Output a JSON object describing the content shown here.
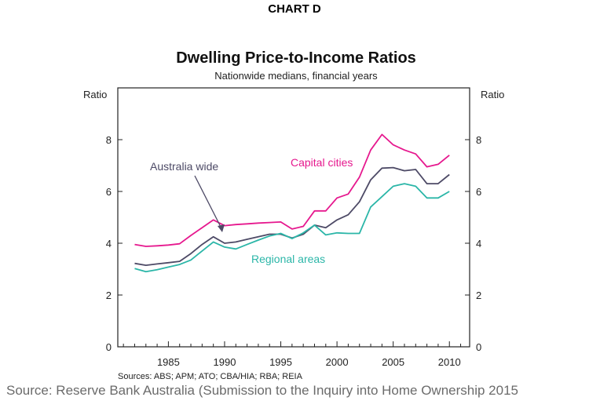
{
  "header": {
    "chart_label": "CHART D"
  },
  "footer": {
    "source": "Source: Reserve Bank Australia (Submission to the Inquiry into Home Ownership 2015"
  },
  "colors": {
    "capital": "#e6188e",
    "australia": "#4d4a66",
    "regional": "#2bb6a8",
    "axis": "#222222"
  },
  "chart_data": {
    "type": "line",
    "title": "Dwelling Price-to-Income Ratios",
    "subtitle": "Nationwide medians, financial years",
    "ylabel_left": "Ratio",
    "ylabel_right": "Ratio",
    "sources": "Sources: ABS; APM; ATO; CBA/HIA; RBA; REIA",
    "xlim": [
      1980.5,
      2011.8
    ],
    "ylim": [
      0,
      10
    ],
    "xticks": [
      1985,
      1990,
      1995,
      2000,
      2005,
      2010
    ],
    "yticks": [
      0,
      2,
      4,
      6,
      8
    ],
    "grid": false,
    "x": [
      1982,
      1983,
      1984,
      1985,
      1986,
      1987,
      1988,
      1989,
      1990,
      1991,
      1992,
      1993,
      1994,
      1995,
      1996,
      1997,
      1998,
      1999,
      2000,
      2001,
      2002,
      2003,
      2004,
      2005,
      2006,
      2007,
      2008,
      2009,
      2010
    ],
    "series": [
      {
        "name": "Capital cities",
        "key": "capital",
        "values": [
          3.95,
          3.88,
          3.9,
          3.93,
          3.98,
          4.3,
          4.6,
          4.9,
          4.68,
          4.72,
          4.75,
          4.78,
          4.8,
          4.82,
          4.55,
          4.65,
          5.25,
          5.25,
          5.75,
          5.9,
          6.55,
          7.6,
          8.2,
          7.8,
          7.6,
          7.45,
          6.95,
          7.05,
          7.4
        ]
      },
      {
        "name": "Australia wide",
        "key": "australia",
        "values": [
          3.22,
          3.15,
          3.2,
          3.25,
          3.3,
          3.6,
          3.95,
          4.25,
          4.0,
          4.05,
          4.15,
          4.25,
          4.35,
          4.35,
          4.2,
          4.35,
          4.7,
          4.6,
          4.9,
          5.1,
          5.6,
          6.45,
          6.9,
          6.92,
          6.8,
          6.85,
          6.3,
          6.3,
          6.65
        ]
      },
      {
        "name": "Regional areas",
        "key": "regional",
        "values": [
          3.02,
          2.9,
          2.98,
          3.08,
          3.18,
          3.35,
          3.7,
          4.05,
          3.85,
          3.78,
          3.95,
          4.12,
          4.28,
          4.38,
          4.18,
          4.4,
          4.7,
          4.32,
          4.4,
          4.38,
          4.38,
          5.4,
          5.8,
          6.2,
          6.3,
          6.2,
          5.75,
          5.75,
          6.0
        ]
      }
    ],
    "annotations": [
      {
        "text": "Capital cities",
        "series": "capital"
      },
      {
        "text": "Australia wide",
        "series": "australia"
      },
      {
        "text": "Regional areas",
        "series": "regional"
      }
    ]
  }
}
